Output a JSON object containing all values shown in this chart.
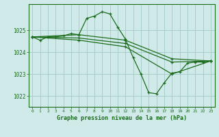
{
  "background_color": "#d0eaea",
  "grid_color": "#a8cccc",
  "line_color": "#1a6b1a",
  "title": "Graphe pression niveau de la mer (hPa)",
  "xlim": [
    -0.5,
    23.5
  ],
  "ylim": [
    1021.5,
    1026.2
  ],
  "yticks": [
    1022,
    1023,
    1024,
    1025
  ],
  "xticks": [
    0,
    1,
    2,
    3,
    4,
    5,
    6,
    7,
    8,
    9,
    10,
    11,
    12,
    13,
    14,
    15,
    16,
    17,
    18,
    19,
    20,
    21,
    22,
    23
  ],
  "series": [
    {
      "x": [
        0,
        1,
        2,
        3,
        4,
        5,
        6,
        7,
        8,
        9,
        10,
        11,
        12,
        13,
        14,
        15,
        16,
        17,
        18,
        19,
        20,
        21,
        22,
        23
      ],
      "y": [
        1024.7,
        1024.55,
        1024.7,
        1024.7,
        1024.75,
        1024.85,
        1024.8,
        1025.55,
        1025.65,
        1025.85,
        1025.75,
        1025.15,
        1024.6,
        1023.75,
        1023.0,
        1022.15,
        1022.1,
        1022.6,
        1023.05,
        1023.1,
        1023.5,
        1023.55,
        1023.55,
        1023.6
      ]
    },
    {
      "x": [
        0,
        6,
        12,
        18,
        23
      ],
      "y": [
        1024.7,
        1024.8,
        1024.55,
        1023.7,
        1023.6
      ]
    },
    {
      "x": [
        0,
        6,
        12,
        18,
        23
      ],
      "y": [
        1024.7,
        1024.65,
        1024.4,
        1023.55,
        1023.6
      ]
    },
    {
      "x": [
        0,
        6,
        12,
        18,
        23
      ],
      "y": [
        1024.7,
        1024.55,
        1024.25,
        1023.0,
        1023.6
      ]
    }
  ]
}
